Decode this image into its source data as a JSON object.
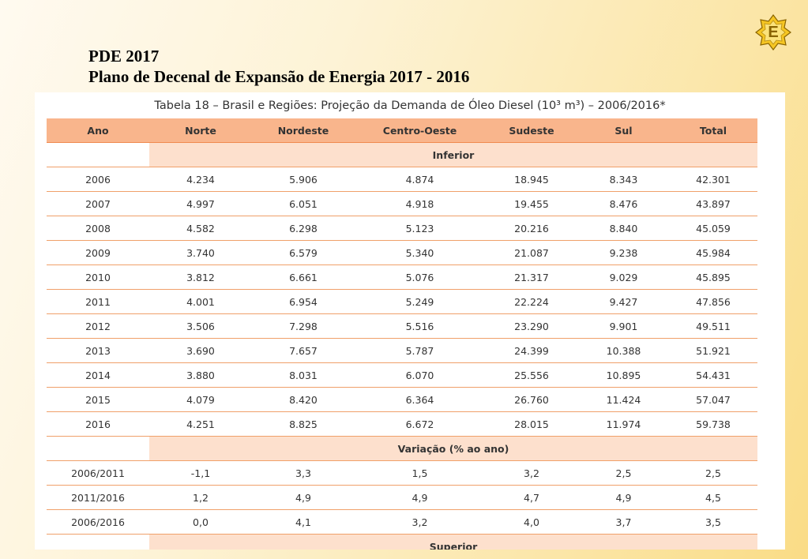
{
  "slide": {
    "title_line1": "PDE 2017",
    "title_line2": "Plano de Decenal de Expansão de Energia 2017 - 2016",
    "logo_letter": "E",
    "accent_color": "#f9b58c",
    "section_color": "#fde0cd"
  },
  "table": {
    "caption": "Tabela 18 – Brasil e Regiões: Projeção da Demanda de Óleo Diesel (10³ m³) – 2006/2016*",
    "headers": [
      "Ano",
      "Norte",
      "Nordeste",
      "Centro-Oeste",
      "Sudeste",
      "Sul",
      "Total"
    ],
    "sections": [
      {
        "label": "Inferior",
        "rows": [
          [
            "2006",
            "4.234",
            "5.906",
            "4.874",
            "18.945",
            "8.343",
            "42.301"
          ],
          [
            "2007",
            "4.997",
            "6.051",
            "4.918",
            "19.455",
            "8.476",
            "43.897"
          ],
          [
            "2008",
            "4.582",
            "6.298",
            "5.123",
            "20.216",
            "8.840",
            "45.059"
          ],
          [
            "2009",
            "3.740",
            "6.579",
            "5.340",
            "21.087",
            "9.238",
            "45.984"
          ],
          [
            "2010",
            "3.812",
            "6.661",
            "5.076",
            "21.317",
            "9.029",
            "45.895"
          ],
          [
            "2011",
            "4.001",
            "6.954",
            "5.249",
            "22.224",
            "9.427",
            "47.856"
          ],
          [
            "2012",
            "3.506",
            "7.298",
            "5.516",
            "23.290",
            "9.901",
            "49.511"
          ],
          [
            "2013",
            "3.690",
            "7.657",
            "5.787",
            "24.399",
            "10.388",
            "51.921"
          ],
          [
            "2014",
            "3.880",
            "8.031",
            "6.070",
            "25.556",
            "10.895",
            "54.431"
          ],
          [
            "2015",
            "4.079",
            "8.420",
            "6.364",
            "26.760",
            "11.424",
            "57.047"
          ],
          [
            "2016",
            "4.251",
            "8.825",
            "6.672",
            "28.015",
            "11.974",
            "59.738"
          ]
        ]
      },
      {
        "label": "Variação (% ao ano)",
        "rows": [
          [
            "2006/2011",
            "-1,1",
            "3,3",
            "1,5",
            "3,2",
            "2,5",
            "2,5"
          ],
          [
            "2011/2016",
            "1,2",
            "4,9",
            "4,9",
            "4,7",
            "4,9",
            "4,5"
          ],
          [
            "2006/2016",
            "0,0",
            "4,1",
            "3,2",
            "4,0",
            "3,7",
            "3,5"
          ]
        ]
      },
      {
        "label": "Superior",
        "rows": []
      }
    ]
  }
}
